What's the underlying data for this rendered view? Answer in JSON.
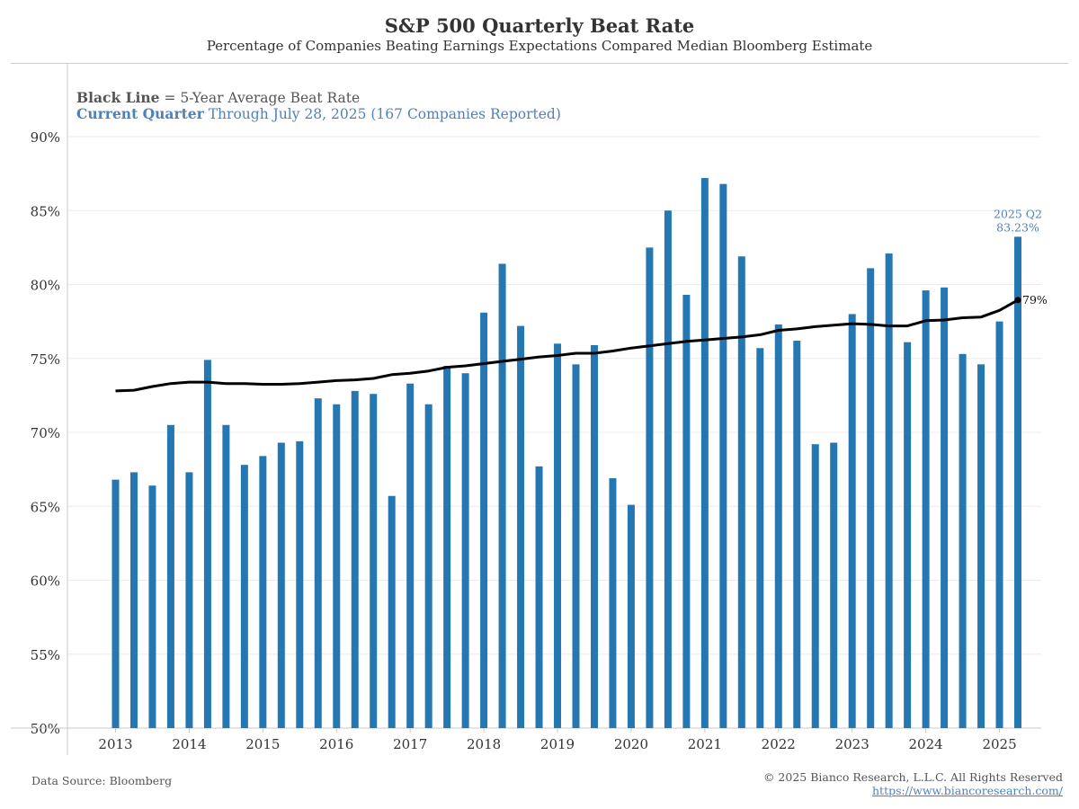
{
  "header": {
    "title": "S&P 500 Quarterly Beat Rate",
    "subtitle": "Percentage of Companies Beating Earnings Expectations Compared Median Bloomberg Estimate"
  },
  "notes": {
    "line1_bold": "Black Line",
    "line1_rest": " = 5-Year Average Beat Rate",
    "line2_bold": "Current Quarter",
    "line2_rest": " Through July 28, 2025 (167 Companies Reported)"
  },
  "footer": {
    "source": "Data Source: Bloomberg",
    "copyright": "© 2025 Bianco Research, L.L.C. All Rights Reserved",
    "url": "https://www.biancoresearch.com/"
  },
  "colors": {
    "bar": "#2577b2",
    "line": "#000000",
    "accent": "#4f81b8"
  },
  "chart_data": {
    "type": "bar",
    "ylim": [
      50,
      95
    ],
    "y_ticks": [
      50,
      55,
      60,
      65,
      70,
      75,
      80,
      85,
      90
    ],
    "y_tick_labels": [
      "50%",
      "55%",
      "60%",
      "65%",
      "70%",
      "75%",
      "80%",
      "85%",
      "90%"
    ],
    "x_year_labels": [
      "2013",
      "2014",
      "2015",
      "2016",
      "2017",
      "2018",
      "2019",
      "2020",
      "2021",
      "2022",
      "2023",
      "2024",
      "2025"
    ],
    "grid": true,
    "categories": [
      "2013 Q1",
      "2013 Q2",
      "2013 Q3",
      "2013 Q4",
      "2014 Q1",
      "2014 Q2",
      "2014 Q3",
      "2014 Q4",
      "2015 Q1",
      "2015 Q2",
      "2015 Q3",
      "2015 Q4",
      "2016 Q1",
      "2016 Q2",
      "2016 Q3",
      "2016 Q4",
      "2017 Q1",
      "2017 Q2",
      "2017 Q3",
      "2017 Q4",
      "2018 Q1",
      "2018 Q2",
      "2018 Q3",
      "2018 Q4",
      "2019 Q1",
      "2019 Q2",
      "2019 Q3",
      "2019 Q4",
      "2020 Q1",
      "2020 Q2",
      "2020 Q3",
      "2020 Q4",
      "2021 Q1",
      "2021 Q2",
      "2021 Q3",
      "2021 Q4",
      "2022 Q1",
      "2022 Q2",
      "2022 Q3",
      "2022 Q4",
      "2023 Q1",
      "2023 Q2",
      "2023 Q3",
      "2023 Q4",
      "2024 Q1",
      "2024 Q2",
      "2024 Q3",
      "2024 Q4",
      "2025 Q1",
      "2025 Q2"
    ],
    "series": [
      {
        "type": "bar",
        "values": [
          66.8,
          67.3,
          66.4,
          70.5,
          67.3,
          74.9,
          70.5,
          67.8,
          68.4,
          69.3,
          69.4,
          72.3,
          71.9,
          72.8,
          72.6,
          65.7,
          73.3,
          71.9,
          74.5,
          74.0,
          78.1,
          81.4,
          77.2,
          67.7,
          76.0,
          74.6,
          75.9,
          66.9,
          65.1,
          82.5,
          85.0,
          79.3,
          87.2,
          86.8,
          81.9,
          75.7,
          77.3,
          76.2,
          69.2,
          69.3,
          78.0,
          81.1,
          82.1,
          76.1,
          79.6,
          79.8,
          75.3,
          74.6,
          77.5,
          83.23
        ]
      },
      {
        "type": "line",
        "values": [
          72.8,
          72.85,
          73.1,
          73.3,
          73.4,
          73.4,
          73.3,
          73.3,
          73.25,
          73.25,
          73.3,
          73.4,
          73.5,
          73.55,
          73.65,
          73.9,
          74.0,
          74.15,
          74.4,
          74.5,
          74.65,
          74.8,
          74.95,
          75.1,
          75.2,
          75.35,
          75.35,
          75.5,
          75.7,
          75.85,
          76.0,
          76.15,
          76.25,
          76.35,
          76.45,
          76.6,
          76.9,
          77.0,
          77.15,
          77.25,
          77.35,
          77.3,
          77.2,
          77.2,
          77.55,
          77.6,
          77.75,
          77.8,
          78.25,
          78.95
        ]
      }
    ],
    "annotations": {
      "last_bar_label_line1": "2025 Q2",
      "last_bar_label_line2": "83.23%",
      "line_end_label": "79%"
    }
  }
}
